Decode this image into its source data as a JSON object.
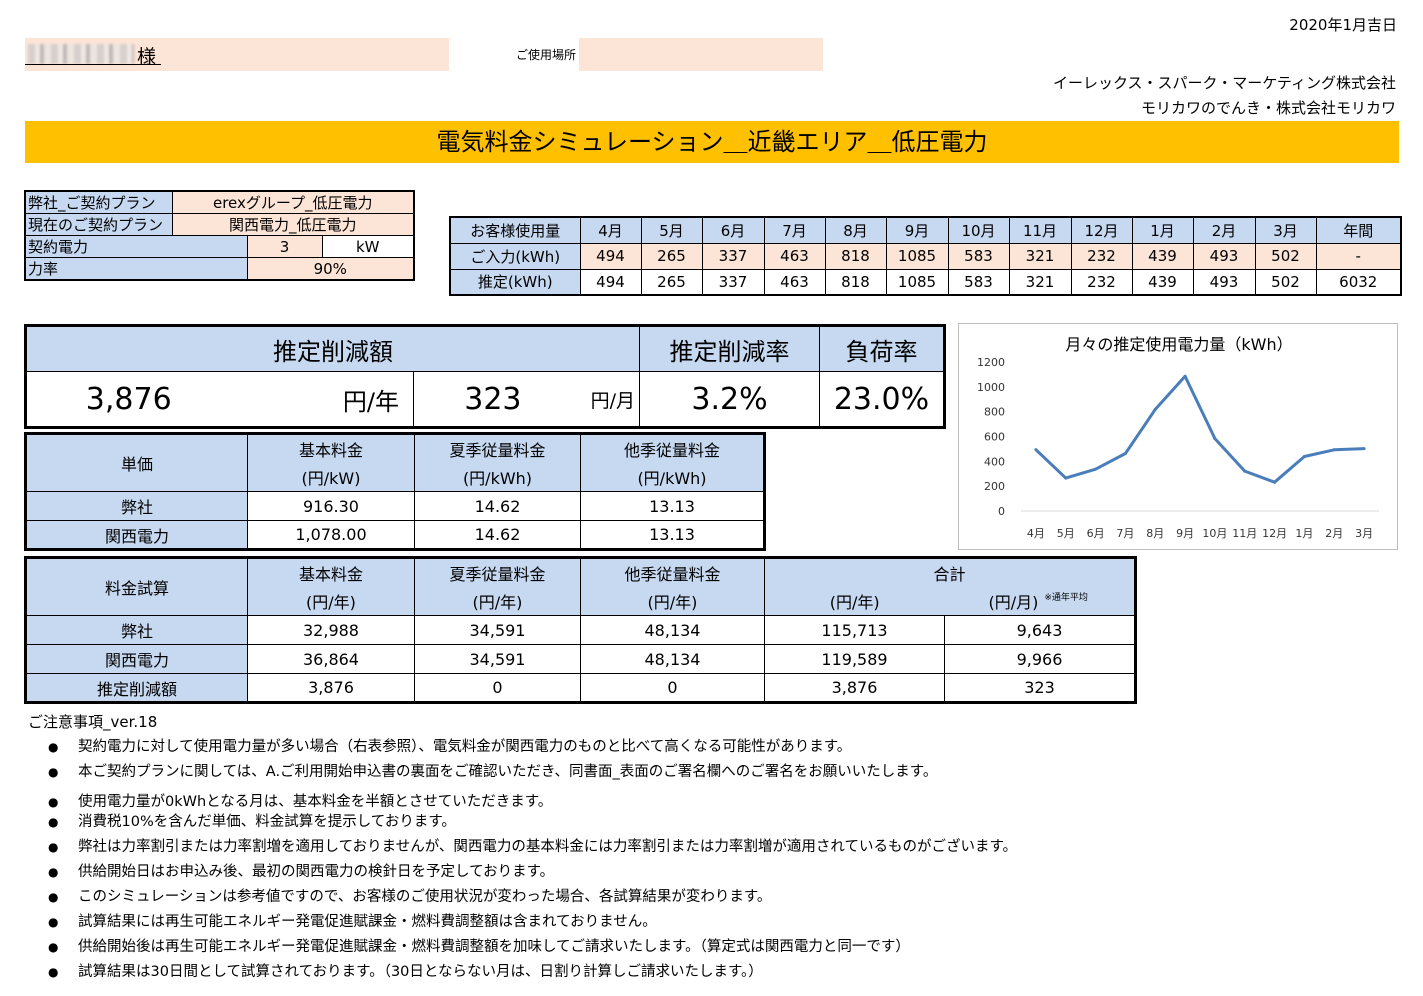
{
  "header": {
    "date": "2020年1月吉日",
    "customer_suffix": "様",
    "place_label": "ご使用場所",
    "company_line1": "イーレックス・スパーク・マーケティング株式会社",
    "company_line2": "モリカワのでんき・株式会社モリカワ",
    "title": "電気料金シミュレーション＿近畿エリア＿低圧電力"
  },
  "plan": {
    "our_plan_label": "弊社_ご契約プラン",
    "our_plan_value": "erexグループ_低圧電力",
    "current_plan_label": "現在のご契約プラン",
    "current_plan_value": "関西電力_低圧電力",
    "contract_power_label": "契約電力",
    "contract_power_value": "3",
    "contract_power_unit": "kW",
    "power_factor_label": "力率",
    "power_factor_value": "90%"
  },
  "usage": {
    "header_label": "お客様使用量",
    "months": [
      "4月",
      "5月",
      "6月",
      "7月",
      "8月",
      "9月",
      "10月",
      "11月",
      "12月",
      "1月",
      "2月",
      "3月"
    ],
    "annual_label": "年間",
    "input_label": "ご入力(kWh)",
    "input_values": [
      "494",
      "265",
      "337",
      "463",
      "818",
      "1085",
      "583",
      "321",
      "232",
      "439",
      "493",
      "502"
    ],
    "input_annual": "-",
    "estimate_label": "推定(kWh)",
    "estimate_values": [
      "494",
      "265",
      "337",
      "463",
      "818",
      "1085",
      "583",
      "321",
      "232",
      "439",
      "493",
      "502"
    ],
    "estimate_annual": "6032"
  },
  "result": {
    "reduction_label": "推定削減額",
    "rate_label": "推定削減率",
    "load_label": "負荷率",
    "yearly_value": "3,876",
    "yearly_unit": "円/年",
    "monthly_value": "323",
    "monthly_unit": "円/月",
    "rate_value": "3.2%",
    "load_value": "23.0%"
  },
  "unit_price": {
    "label": "単価",
    "basic_label": "基本料金",
    "basic_unit": "(円/kW)",
    "summer_label": "夏季従量料金",
    "summer_unit": "(円/kWh)",
    "other_label": "他季従量料金",
    "other_unit": "(円/kWh)",
    "rows": [
      {
        "name": "弊社",
        "basic": "916.30",
        "summer": "14.62",
        "other": "13.13"
      },
      {
        "name": "関西電力",
        "basic": "1,078.00",
        "summer": "14.62",
        "other": "13.13"
      }
    ]
  },
  "fee": {
    "label": "料金試算",
    "basic_label": "基本料金",
    "summer_label": "夏季従量料金",
    "other_label": "他季従量料金",
    "total_label": "合計",
    "unit_year": "(円/年)",
    "unit_month": "(円/月)",
    "avg_note": "※通年平均",
    "rows": [
      {
        "name": "弊社",
        "basic": "32,988",
        "summer": "34,591",
        "other": "48,134",
        "total_year": "115,713",
        "total_month": "9,643"
      },
      {
        "name": "関西電力",
        "basic": "36,864",
        "summer": "34,591",
        "other": "48,134",
        "total_year": "119,589",
        "total_month": "9,966"
      },
      {
        "name": "推定削減額",
        "basic": "3,876",
        "summer": "0",
        "other": "0",
        "total_year": "3,876",
        "total_month": "323"
      }
    ]
  },
  "chart_data": {
    "type": "line",
    "title": "月々の推定使用電力量（kWh）",
    "categories": [
      "4月",
      "5月",
      "6月",
      "7月",
      "8月",
      "9月",
      "10月",
      "11月",
      "12月",
      "1月",
      "2月",
      "3月"
    ],
    "values": [
      494,
      265,
      337,
      463,
      818,
      1085,
      583,
      321,
      232,
      439,
      493,
      502
    ],
    "ylim": [
      0,
      1200
    ],
    "yticks": [
      0,
      200,
      400,
      600,
      800,
      1000,
      1200
    ],
    "grid": false,
    "legend": "none",
    "line_color": "#4a7ebb"
  },
  "notes": {
    "title": "ご注意事項_ver.18",
    "bullet": "●",
    "items": [
      "契約電力に対して使用電力量が多い場合（右表参照）、電気料金が関西電力のものと比べて高くなる可能性があります。",
      "本ご契約プランに関しては、A.ご利用開始申込書の裏面をご確認いただき、同書面_表面のご署名欄へのご署名をお願いいたします。",
      "使用電力量が0kWhとなる月は、基本料金を半額とさせていただきます。",
      "消費税10%を含んだ単価、料金試算を提示しております。",
      "弊社は力率割引または力率割増を適用しておりませんが、関西電力の基本料金には力率割引または力率割増が適用されているものがございます。",
      "供給開始日はお申込み後、最初の関西電力の検針日を予定しております。",
      "このシミュレーションは参考値ですので、お客様のご使用状況が変わった場合、各試算結果が変わります。",
      "試算結果には再生可能エネルギー発電促進賦課金・燃料費調整額は含まれておりません。",
      "供給開始後は再生可能エネルギー発電促進賦課金・燃料費調整額を加味してご請求いたします。（算定式は関西電力と同一です）",
      "試算結果は30日間として試算されております。（30日とならない月は、日割り計算しご請求いたします。）"
    ]
  }
}
